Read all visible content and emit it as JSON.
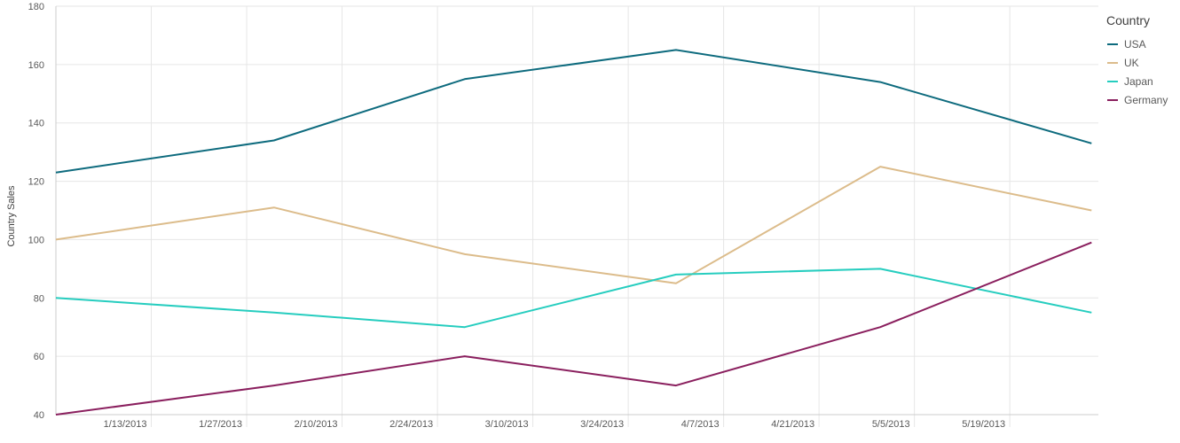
{
  "chart_data": {
    "type": "line",
    "ylabel": "Country Sales",
    "ylim": [
      40,
      180
    ],
    "yticks": [
      "40",
      "60",
      "80",
      "100",
      "120",
      "140",
      "160",
      "180"
    ],
    "xlim": [
      "2012-12-30",
      "2013-06-01"
    ],
    "xticks": [
      {
        "date": "2013-01-13",
        "label": "1/13/2013"
      },
      {
        "date": "2013-01-27",
        "label": "1/27/2013"
      },
      {
        "date": "2013-02-10",
        "label": "2/10/2013"
      },
      {
        "date": "2013-02-24",
        "label": "2/24/2013"
      },
      {
        "date": "2013-03-10",
        "label": "3/10/2013"
      },
      {
        "date": "2013-03-24",
        "label": "3/24/2013"
      },
      {
        "date": "2013-04-07",
        "label": "4/7/2013"
      },
      {
        "date": "2013-04-21",
        "label": "4/21/2013"
      },
      {
        "date": "2013-05-05",
        "label": "5/5/2013"
      },
      {
        "date": "2013-05-19",
        "label": "5/19/2013"
      }
    ],
    "x": [
      "2012-12-30",
      "2013-01-31",
      "2013-02-28",
      "2013-03-31",
      "2013-04-30",
      "2013-05-31"
    ],
    "grid": true,
    "legend": {
      "title": "Country",
      "position": "right"
    },
    "series": [
      {
        "name": "USA",
        "color": "#0e6b7e",
        "values": [
          123,
          134,
          155,
          165,
          154,
          133
        ]
      },
      {
        "name": "UK",
        "color": "#dcbc8b",
        "values": [
          100,
          111,
          95,
          85,
          125,
          110
        ]
      },
      {
        "name": "Japan",
        "color": "#26cdbf",
        "values": [
          80,
          75,
          70,
          88,
          90,
          75
        ]
      },
      {
        "name": "Germany",
        "color": "#8a1f5e",
        "values": [
          40,
          50,
          60,
          50,
          70,
          99
        ]
      }
    ]
  }
}
